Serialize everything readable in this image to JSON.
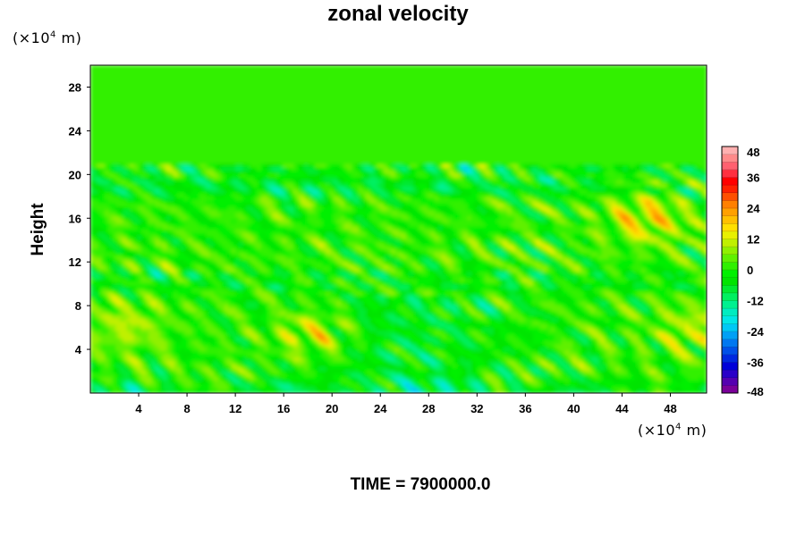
{
  "chart_data": {
    "type": "heatmap",
    "title": "zonal velocity",
    "ylabel": "Height",
    "xlabel": "",
    "x_unit": "(×10",
    "x_unit_exp": "4",
    "x_unit_tail": " m)",
    "y_unit": "(×10",
    "y_unit_exp": "4",
    "y_unit_tail": " m)",
    "xlim": [
      0,
      51
    ],
    "ylim": [
      0,
      30
    ],
    "x_ticks": [
      4,
      8,
      12,
      16,
      20,
      24,
      28,
      32,
      36,
      40,
      44,
      48
    ],
    "y_ticks": [
      4,
      8,
      12,
      16,
      20,
      24,
      28
    ],
    "colorbar": {
      "min": -48,
      "max": 48,
      "ticks": [
        48,
        36,
        24,
        12,
        0,
        -12,
        -24,
        -36,
        -48
      ],
      "colors": [
        "#7a0099",
        "#5500b0",
        "#2a00c8",
        "#0000d8",
        "#0028e0",
        "#0050e8",
        "#0078f0",
        "#00a0f5",
        "#00c8f5",
        "#00e6e6",
        "#00ecc0",
        "#00f090",
        "#00f060",
        "#00ea30",
        "#00e400",
        "#00f000",
        "#30f000",
        "#60f000",
        "#90f000",
        "#c0f000",
        "#e8f000",
        "#ffe000",
        "#ffc000",
        "#ffa000",
        "#ff8000",
        "#ff5000",
        "#ff2000",
        "#ff0000",
        "#ff3040",
        "#ff6070",
        "#ff8a8a",
        "#ffb0b0"
      ]
    },
    "field_description_values": {
      "upper_layer_value": 1,
      "layer_bands_y": [
        9.8,
        10.8,
        19.5,
        20.5
      ],
      "high_value_spots": [
        {
          "x": 18.5,
          "y": 5.5,
          "value": 12
        },
        {
          "x": 3,
          "y": 6,
          "value": 9
        },
        {
          "x": 50,
          "y": 6,
          "value": 9
        },
        {
          "x": 46,
          "y": 16,
          "value": 14
        }
      ]
    }
  },
  "footer_text": "TIME = 7900000.0"
}
